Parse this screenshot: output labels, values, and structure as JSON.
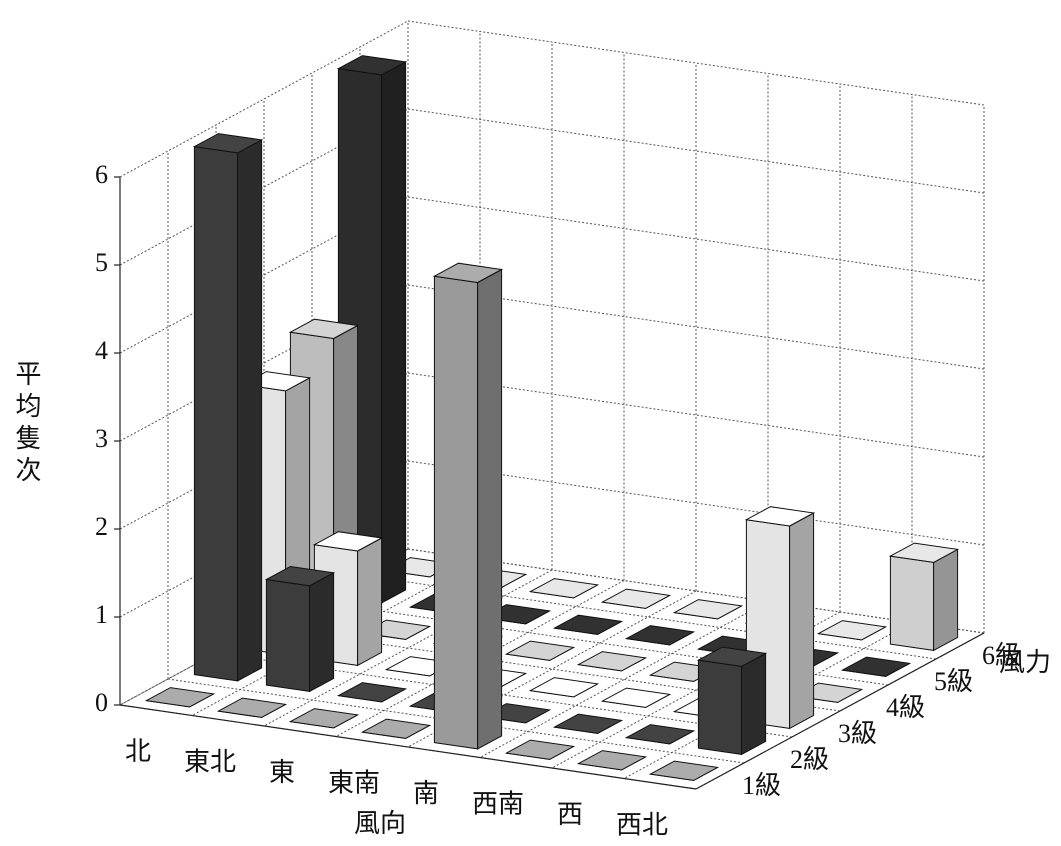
{
  "chart_data": {
    "type": "bar3d",
    "categories": [
      "北",
      "東北",
      "東",
      "東南",
      "南",
      "西南",
      "西",
      "西北"
    ],
    "series": [
      {
        "name": "1級",
        "color": "#9a9a9a",
        "values": [
          0,
          0,
          0,
          0,
          5.3,
          0,
          0,
          0
        ]
      },
      {
        "name": "2級",
        "color": "#3c3c3c",
        "values": [
          6,
          1.2,
          0,
          0,
          0,
          0,
          0,
          1
        ]
      },
      {
        "name": "3級",
        "color": "#e4e4e4",
        "values": [
          3,
          1.3,
          0,
          0,
          0,
          0,
          0,
          2.3
        ]
      },
      {
        "name": "4級",
        "color": "#bdbdbd",
        "values": [
          3.3,
          0,
          0,
          0,
          0,
          0,
          0,
          0
        ]
      },
      {
        "name": "5級",
        "color": "#2c2c2c",
        "values": [
          6,
          0,
          0,
          0,
          0,
          0,
          0,
          0
        ]
      },
      {
        "name": "6級",
        "color": "#cfcfcf",
        "values": [
          0,
          0,
          0,
          0,
          0,
          0,
          0,
          1
        ]
      }
    ],
    "zlabel": "平均隻次",
    "xlabel": "風向",
    "ylabel": "風力",
    "zlim": [
      0,
      6
    ],
    "zticks": [
      0,
      1,
      2,
      3,
      4,
      5,
      6
    ],
    "grid": true
  }
}
